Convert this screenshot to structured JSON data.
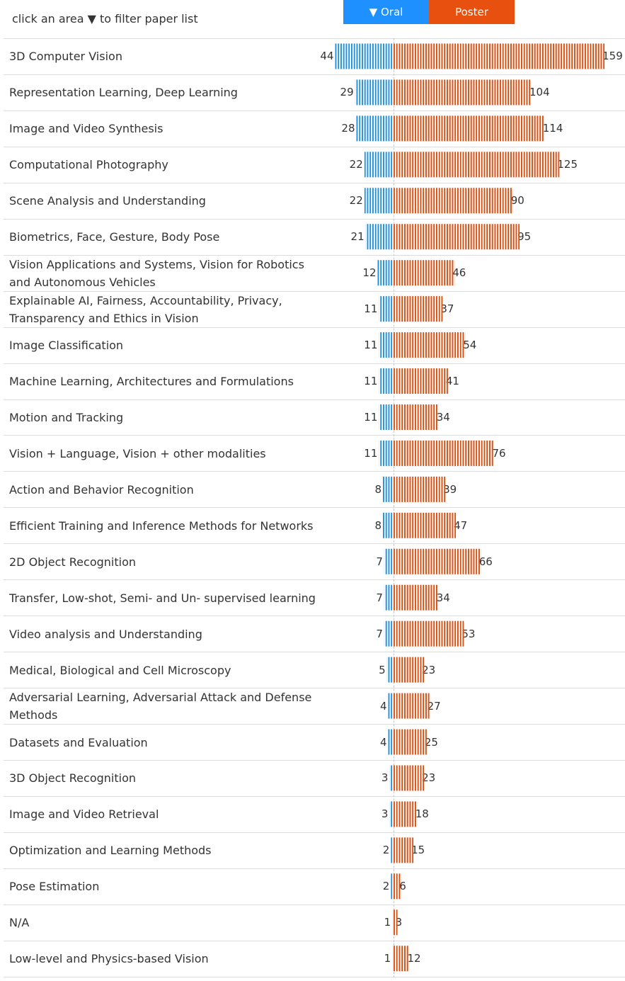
{
  "header": {
    "hint": "click an area ▼ to filter paper list",
    "legend_oral": "▼ Oral",
    "legend_poster": "Poster"
  },
  "colors": {
    "oral": "#1f8fe0",
    "poster": "#dc4c0c",
    "oral_button": "#1e90ff",
    "poster_button": "#e8500f"
  },
  "chart_data": {
    "type": "bar",
    "orientation": "horizontal-diverging",
    "series": [
      {
        "name": "Oral",
        "direction": "left",
        "values": [
          44,
          29,
          28,
          22,
          22,
          21,
          12,
          11,
          11,
          11,
          11,
          11,
          8,
          8,
          7,
          7,
          7,
          5,
          4,
          4,
          3,
          3,
          2,
          2,
          1,
          1
        ]
      },
      {
        "name": "Poster",
        "direction": "right",
        "values": [
          159,
          104,
          114,
          125,
          90,
          95,
          46,
          37,
          54,
          41,
          34,
          76,
          39,
          47,
          66,
          34,
          53,
          23,
          27,
          25,
          23,
          18,
          15,
          6,
          3,
          12
        ]
      }
    ],
    "categories": [
      "3D Computer Vision",
      "Representation Learning, Deep Learning",
      "Image and Video Synthesis",
      "Computational Photography",
      "Scene Analysis and Understanding",
      "Biometrics, Face, Gesture, Body Pose",
      "Vision Applications and Systems, Vision for Robotics and Autonomous Vehicles",
      "Explainable AI, Fairness, Accountability, Privacy, Transparency and Ethics in Vision",
      "Image Classification",
      "Machine Learning, Architectures and Formulations",
      "Motion and Tracking",
      "Vision + Language, Vision + other modalities",
      "Action and Behavior Recognition",
      "Efficient Training and Inference Methods for Networks",
      "2D Object Recognition",
      "Transfer, Low-shot, Semi- and Un- supervised learning",
      "Video analysis and Understanding",
      "Medical, Biological and Cell Microscopy",
      "Adversarial Learning, Adversarial Attack and Defense Methods",
      "Datasets and Evaluation",
      "3D Object Recognition",
      "Image and Video Retrieval",
      "Optimization and Learning Methods",
      "Pose Estimation",
      "N/A",
      "Low-level and Physics-based Vision"
    ],
    "title": "",
    "xlabel": "",
    "ylabel": "",
    "grid": false,
    "legend": "top-center"
  }
}
